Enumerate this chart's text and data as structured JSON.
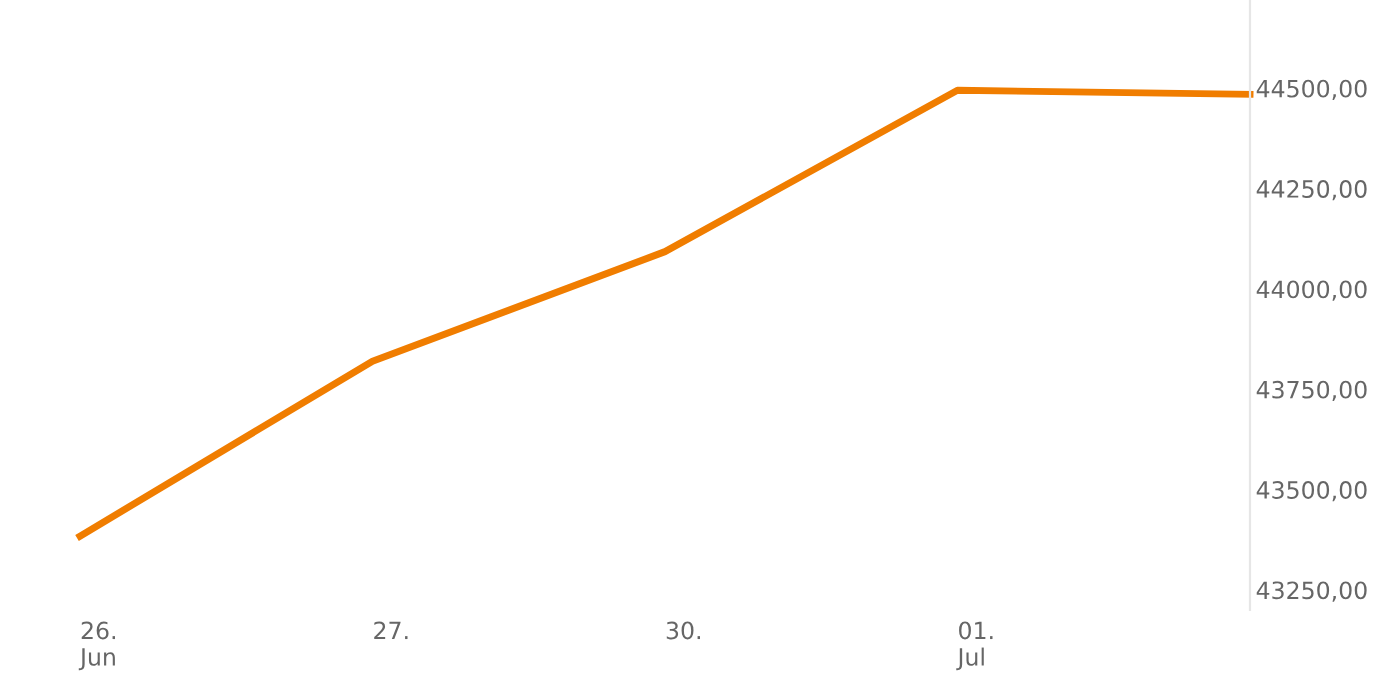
{
  "chart_data": {
    "type": "line",
    "categories": [
      "26.\nJun",
      "27.",
      "30.",
      "01.\nJul",
      null
    ],
    "series": [
      {
        "color": "#f07d00",
        "values": [
          43384,
          43820,
          44093,
          44495,
          44485
        ]
      }
    ],
    "ylim": [
      43200,
      44720
    ],
    "yticks": [
      {
        "value": 43250,
        "label": "43250,00"
      },
      {
        "value": 43500,
        "label": "43500,00"
      },
      {
        "value": 43750,
        "label": "43750,00"
      },
      {
        "value": 44000,
        "label": "44000,00"
      },
      {
        "value": 44250,
        "label": "44250,00"
      },
      {
        "value": 44500,
        "label": "44500,00"
      }
    ],
    "grid": false,
    "legend": false,
    "marker": "none",
    "line_style": "solid"
  }
}
